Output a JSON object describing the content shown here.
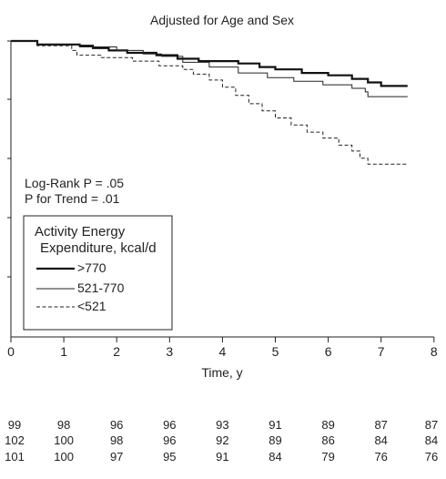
{
  "chart_data": {
    "type": "line",
    "title": "Adjusted for Age and Sex",
    "xlabel": "Time, y",
    "ylabel": "",
    "xlim": [
      0,
      8
    ],
    "x_ticks": [
      "0",
      "1",
      "2",
      "3",
      "4",
      "5",
      "6",
      "7",
      "8"
    ],
    "ylim": [
      0.75,
      1.0
    ],
    "annotations": {
      "logrank": "Log-Rank P = .05",
      "trend": "P for Trend = .01"
    },
    "legend": {
      "title_line1": "Activity Energy",
      "title_line2": "Expenditure, kcal/d",
      "position": "center-left"
    },
    "series": [
      {
        "name": ">770",
        "style": "thick-solid",
        "points": [
          [
            0,
            1.0
          ],
          [
            0.45,
            1.0
          ],
          [
            0.5,
            0.997
          ],
          [
            1.3,
            0.996
          ],
          [
            1.55,
            0.994
          ],
          [
            1.85,
            0.992
          ],
          [
            2.2,
            0.99
          ],
          [
            2.75,
            0.988
          ],
          [
            3.15,
            0.985
          ],
          [
            3.55,
            0.983
          ],
          [
            4.3,
            0.981
          ],
          [
            4.7,
            0.978
          ],
          [
            5.0,
            0.976
          ],
          [
            5.5,
            0.973
          ],
          [
            6.0,
            0.971
          ],
          [
            6.45,
            0.968
          ],
          [
            6.75,
            0.965
          ],
          [
            7.0,
            0.962
          ],
          [
            7.5,
            0.962
          ]
        ]
      },
      {
        "name": "521-770",
        "style": "thin-solid",
        "points": [
          [
            0,
            1.0
          ],
          [
            0.45,
            1.0
          ],
          [
            0.5,
            0.997
          ],
          [
            1.3,
            0.995
          ],
          [
            2.0,
            0.992
          ],
          [
            2.5,
            0.989
          ],
          [
            2.85,
            0.987
          ],
          [
            3.25,
            0.982
          ],
          [
            3.75,
            0.978
          ],
          [
            4.3,
            0.973
          ],
          [
            4.85,
            0.969
          ],
          [
            5.35,
            0.966
          ],
          [
            5.9,
            0.963
          ],
          [
            6.45,
            0.96
          ],
          [
            6.7,
            0.957
          ],
          [
            6.75,
            0.953
          ],
          [
            7.5,
            0.953
          ]
        ]
      },
      {
        "name": "<521",
        "style": "dashed",
        "points": [
          [
            0,
            1.0
          ],
          [
            0.45,
            1.0
          ],
          [
            0.5,
            0.996
          ],
          [
            1.15,
            0.992
          ],
          [
            1.25,
            0.988
          ],
          [
            1.7,
            0.986
          ],
          [
            2.3,
            0.983
          ],
          [
            2.8,
            0.979
          ],
          [
            3.25,
            0.976
          ],
          [
            3.45,
            0.972
          ],
          [
            3.75,
            0.967
          ],
          [
            4.0,
            0.961
          ],
          [
            4.25,
            0.954
          ],
          [
            4.5,
            0.947
          ],
          [
            4.75,
            0.941
          ],
          [
            5.0,
            0.935
          ],
          [
            5.3,
            0.929
          ],
          [
            5.6,
            0.923
          ],
          [
            5.9,
            0.918
          ],
          [
            6.2,
            0.912
          ],
          [
            6.45,
            0.907
          ],
          [
            6.6,
            0.901
          ],
          [
            6.75,
            0.896
          ],
          [
            7.5,
            0.896
          ]
        ]
      }
    ]
  },
  "risk_table": {
    "rows": [
      [
        "99",
        "98",
        "96",
        "96",
        "93",
        "91",
        "89",
        "87",
        "87"
      ],
      [
        "102",
        "100",
        "98",
        "96",
        "92",
        "89",
        "86",
        "84",
        "84"
      ],
      [
        "101",
        "100",
        "97",
        "95",
        "91",
        "84",
        "79",
        "76",
        "76"
      ]
    ]
  }
}
